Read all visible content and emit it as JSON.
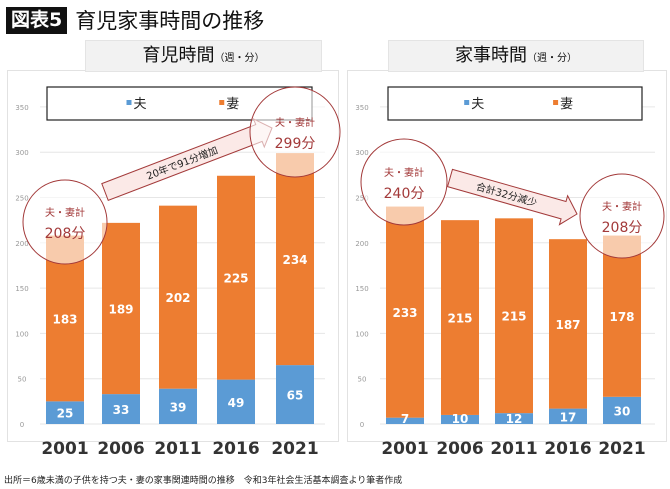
{
  "header": {
    "badge": "図表5",
    "title": "育児家事時間の推移"
  },
  "colors": {
    "husband": "#5b9bd5",
    "wife": "#ed7d31",
    "annotation": "#a33a3a"
  },
  "chart_data": [
    {
      "type": "bar",
      "stacked": true,
      "title": "育児時間",
      "title_unit": "（週・分）",
      "categories": [
        "2001",
        "2006",
        "2011",
        "2016",
        "2021"
      ],
      "series": [
        {
          "name": "夫",
          "values": [
            25,
            33,
            39,
            49,
            65
          ]
        },
        {
          "name": "妻",
          "values": [
            183,
            189,
            202,
            225,
            234
          ]
        }
      ],
      "ylim": [
        0,
        350
      ],
      "yticks": [
        0,
        50,
        100,
        150,
        200,
        250,
        300,
        350
      ],
      "grid": true,
      "legend": "top",
      "annotations": {
        "start_label": "夫・妻計",
        "start_value": "208分",
        "end_label": "夫・妻計",
        "end_value": "299分",
        "arrow_text": "20年で91分増加"
      }
    },
    {
      "type": "bar",
      "stacked": true,
      "title": "家事時間",
      "title_unit": "（週・分）",
      "categories": [
        "2001",
        "2006",
        "2011",
        "2016",
        "2021"
      ],
      "series": [
        {
          "name": "夫",
          "values": [
            7,
            10,
            12,
            17,
            30
          ]
        },
        {
          "name": "妻",
          "values": [
            233,
            215,
            215,
            187,
            178
          ]
        }
      ],
      "ylim": [
        0,
        350
      ],
      "yticks": [
        0,
        50,
        100,
        150,
        200,
        250,
        300,
        350
      ],
      "grid": true,
      "legend": "top",
      "annotations": {
        "start_label": "夫・妻計",
        "start_value": "240分",
        "end_label": "夫・妻計",
        "end_value": "208分",
        "arrow_text": "合計32分減少"
      }
    }
  ],
  "footer": "出所＝6歳未満の子供を持つ夫・妻の家事関連時間の推移　令和3年社会生活基本調査より筆者作成"
}
